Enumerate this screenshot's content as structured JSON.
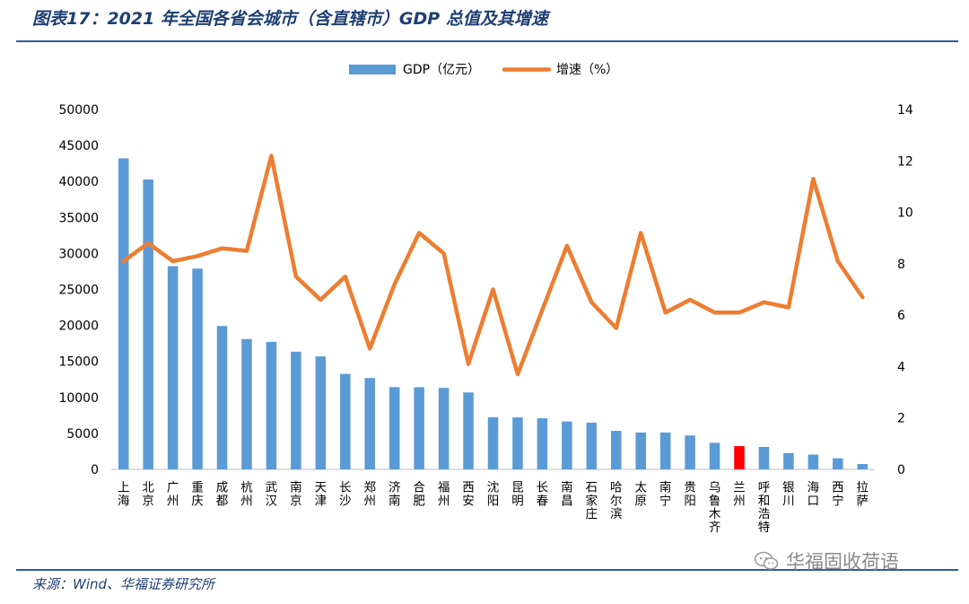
{
  "figure": {
    "title": "图表17：2021 年全国各省会城市（含直辖市）GDP 总值及其增速",
    "source": "来源：Wind、华福证券研究所",
    "watermark": "华福固收荷语"
  },
  "colors": {
    "gdp_bar": "#5b9bd5",
    "highlight_bar": "#ff0000",
    "growth_line": "#ed7d31",
    "title": "#1f3f73",
    "rule": "#2f5c9b"
  },
  "chart_data": {
    "type": "bar",
    "title": "",
    "categories": [
      "上海",
      "北京",
      "广州",
      "重庆",
      "成都",
      "杭州",
      "武汉",
      "南京",
      "天津",
      "长沙",
      "郑州",
      "济南",
      "合肥",
      "福州",
      "西安",
      "沈阳",
      "昆明",
      "长春",
      "南昌",
      "石家庄",
      "哈尔滨",
      "太原",
      "南宁",
      "贵阳",
      "乌鲁木齐",
      "兰州",
      "呼和浩特",
      "银川",
      "海口",
      "西宁",
      "拉萨"
    ],
    "series": [
      {
        "name": "GDP（亿元）",
        "type": "bar",
        "axis": "left",
        "values": [
          43215,
          40270,
          28232,
          27894,
          19917,
          18109,
          17717,
          16355,
          15695,
          13271,
          12691,
          11432,
          11413,
          11324,
          10688,
          7250,
          7223,
          7103,
          6651,
          6490,
          5351,
          5122,
          5121,
          4711,
          3692,
          3231,
          3121,
          2263,
          2057,
          1548,
          742
        ]
      },
      {
        "name": "增速（%）",
        "type": "line",
        "axis": "right",
        "values": [
          8.1,
          8.8,
          8.1,
          8.3,
          8.6,
          8.5,
          12.2,
          7.5,
          6.6,
          7.5,
          4.7,
          7.2,
          9.2,
          8.4,
          4.1,
          7.0,
          3.7,
          6.2,
          8.7,
          6.5,
          5.5,
          9.2,
          6.1,
          6.6,
          6.1,
          6.1,
          6.5,
          6.3,
          11.3,
          8.1,
          6.7
        ]
      }
    ],
    "highlight_category": "兰州",
    "left_axis": {
      "ylim": [
        0,
        50000
      ],
      "ticks": [
        "0",
        "5000",
        "10000",
        "15000",
        "20000",
        "25000",
        "30000",
        "35000",
        "40000",
        "45000",
        "50000"
      ]
    },
    "right_axis": {
      "ylim": [
        0,
        14
      ],
      "ticks": [
        "0",
        "2",
        "4",
        "6",
        "8",
        "10",
        "12",
        "14"
      ]
    },
    "legend": {
      "position": "top-center"
    },
    "grid": false
  }
}
